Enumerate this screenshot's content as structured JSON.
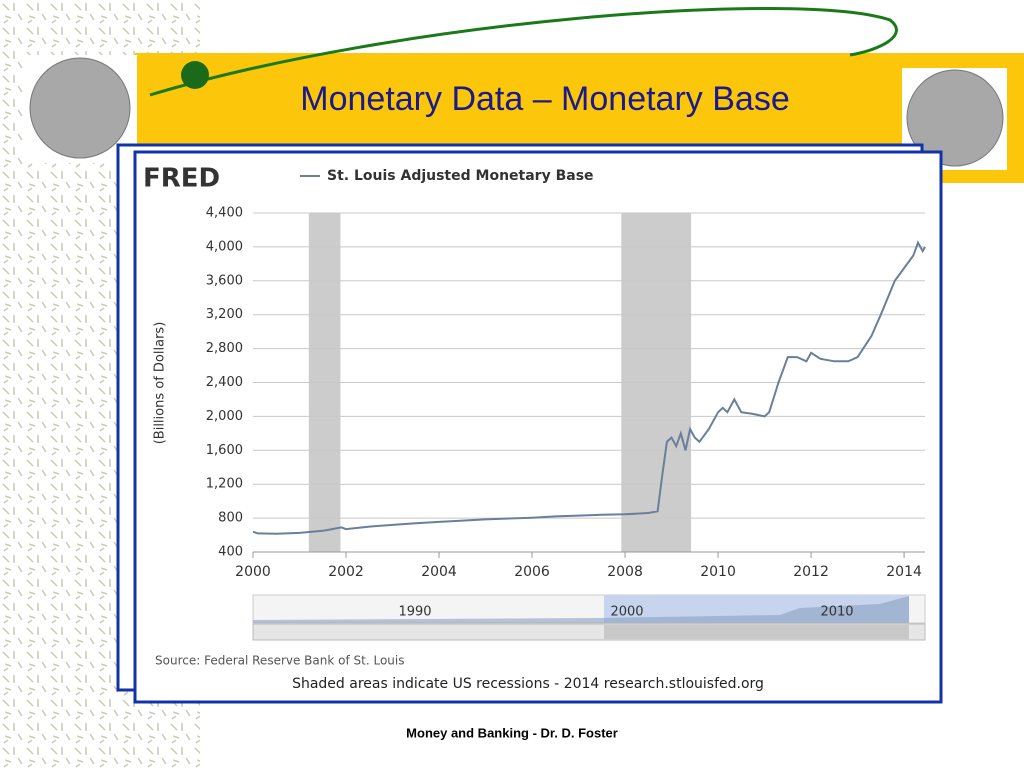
{
  "slide": {
    "title": "Monetary Data – Monetary Base",
    "footer": "Money and Banking - Dr. D. Foster"
  },
  "chart_data": {
    "type": "line",
    "brand": "FRED",
    "ylabel": "(Billions of Dollars)",
    "source": "Source: Federal Reserve Bank of St. Louis",
    "note": "Shaded areas indicate US recessions - 2014 research.stlouisfed.org",
    "navigator_labels": [
      "1990",
      "2000",
      "2010"
    ],
    "recessions": [
      [
        2001.2,
        2001.88
      ],
      [
        2007.92,
        2009.42
      ]
    ],
    "x": [
      2000.0,
      2000.1,
      2000.5,
      2001.0,
      2001.5,
      2001.7,
      2001.9,
      2002.0,
      2002.5,
      2003.0,
      2003.5,
      2004.0,
      2004.5,
      2005.0,
      2005.5,
      2006.0,
      2006.5,
      2007.0,
      2007.5,
      2008.0,
      2008.5,
      2008.7,
      2008.8,
      2008.9,
      2009.0,
      2009.1,
      2009.2,
      2009.3,
      2009.4,
      2009.5,
      2009.6,
      2009.8,
      2010.0,
      2010.1,
      2010.2,
      2010.35,
      2010.5,
      2010.75,
      2011.0,
      2011.1,
      2011.3,
      2011.5,
      2011.7,
      2011.9,
      2012.0,
      2012.2,
      2012.5,
      2012.8,
      2013.0,
      2013.3,
      2013.5,
      2013.8,
      2014.0,
      2014.2,
      2014.3,
      2014.4,
      2014.45
    ],
    "series": [
      {
        "name": "St. Louis Adjusted Monetary Base",
        "color": "#6a7f9a",
        "values": [
          640,
          620,
          615,
          625,
          650,
          670,
          690,
          670,
          700,
          720,
          740,
          755,
          770,
          785,
          795,
          805,
          820,
          830,
          840,
          845,
          860,
          880,
          1300,
          1700,
          1750,
          1650,
          1800,
          1600,
          1850,
          1750,
          1700,
          1850,
          2050,
          2100,
          2050,
          2200,
          2050,
          2030,
          2000,
          2050,
          2400,
          2700,
          2700,
          2650,
          2750,
          2680,
          2650,
          2650,
          2700,
          2950,
          3200,
          3600,
          3750,
          3900,
          4050,
          3950,
          4000
        ]
      }
    ],
    "xlim": [
      2000,
      2014.45
    ],
    "xticks": [
      2000,
      2002,
      2004,
      2006,
      2008,
      2010,
      2012,
      2014
    ],
    "ylim": [
      400,
      4400
    ],
    "yticks": [
      400,
      800,
      {
        "value": 1200,
        "label": "1,200"
      },
      {
        "value": 1600,
        "label": "1,600"
      },
      {
        "value": 2000,
        "label": "2,000"
      },
      {
        "value": 2400,
        "label": "2,400"
      },
      {
        "value": 2800,
        "label": "2,800"
      },
      {
        "value": 3200,
        "label": "3,200"
      },
      {
        "value": 3600,
        "label": "3,600"
      },
      {
        "value": 4000,
        "label": "4,000"
      },
      {
        "value": 4400,
        "label": "4,400"
      }
    ],
    "grid": true
  }
}
